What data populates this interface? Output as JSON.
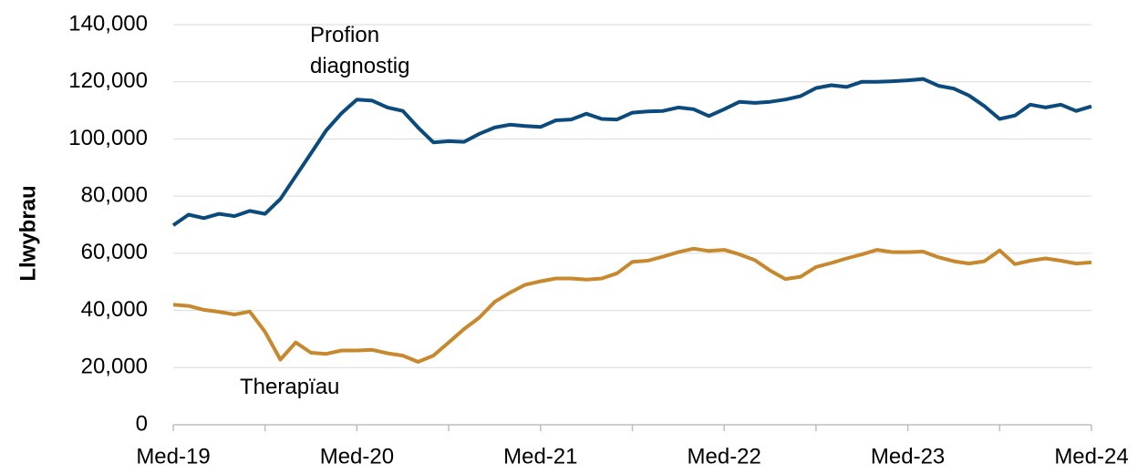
{
  "chart_data": {
    "type": "line",
    "y_label": "Llwybrau",
    "categories": [
      "Med-19",
      null,
      null,
      null,
      null,
      null,
      null,
      null,
      null,
      null,
      null,
      null,
      "Med-20",
      null,
      null,
      null,
      null,
      null,
      null,
      null,
      null,
      null,
      null,
      null,
      "Med-21",
      null,
      null,
      null,
      null,
      null,
      null,
      null,
      null,
      null,
      null,
      null,
      "Med-22",
      null,
      null,
      null,
      null,
      null,
      null,
      null,
      null,
      null,
      null,
      null,
      "Med-23",
      null,
      null,
      null,
      null,
      null,
      null,
      null,
      null,
      null,
      null,
      null,
      "Med-24"
    ],
    "series": [
      {
        "name": "Profion diagnostig",
        "color": "#0b4a7d",
        "values": [
          69800,
          73500,
          72300,
          73800,
          73000,
          74800,
          73800,
          79000,
          87000,
          95000,
          103000,
          109000,
          113800,
          113400,
          111000,
          109800,
          104000,
          98800,
          99200,
          99000,
          101800,
          104000,
          105000,
          104500,
          104200,
          106500,
          106800,
          108800,
          107000,
          106800,
          109200,
          109600,
          109800,
          111000,
          110400,
          108000,
          110400,
          113000,
          112600,
          113000,
          113800,
          115000,
          117800,
          118800,
          118200,
          120000,
          120000,
          120200,
          120500,
          121000,
          118600,
          117600,
          115200,
          111500,
          107000,
          108200,
          112000,
          111000,
          112000,
          109800,
          111400
        ]
      },
      {
        "name": "Therapïau",
        "color": "#c8882e",
        "values": [
          42000,
          41600,
          40200,
          39500,
          38600,
          39600,
          32500,
          22800,
          28800,
          25200,
          24800,
          26000,
          26000,
          26200,
          25000,
          24200,
          22000,
          24200,
          28800,
          33500,
          37500,
          43000,
          46200,
          49000,
          50200,
          51200,
          51200,
          50800,
          51200,
          53000,
          57000,
          57400,
          58800,
          60400,
          61600,
          60800,
          61200,
          59600,
          57600,
          54000,
          51000,
          51800,
          55200,
          56600,
          58200,
          59600,
          61200,
          60400,
          60400,
          60600,
          58600,
          57200,
          56400,
          57200,
          61000,
          56200,
          57400,
          58200,
          57400,
          56400,
          56800
        ]
      }
    ],
    "ylim": [
      0,
      140000
    ],
    "yticks": [
      0,
      {
        "value": 20000,
        "label": "20,000"
      },
      {
        "value": 40000,
        "label": "40,000"
      },
      {
        "value": 60000,
        "label": "60,000"
      },
      {
        "value": 80000,
        "label": "80,000"
      },
      {
        "value": 100000,
        "label": "100,000"
      },
      {
        "value": 120000,
        "label": "120,000"
      },
      {
        "value": 140000,
        "label": "140,000"
      }
    ],
    "grid": true
  }
}
